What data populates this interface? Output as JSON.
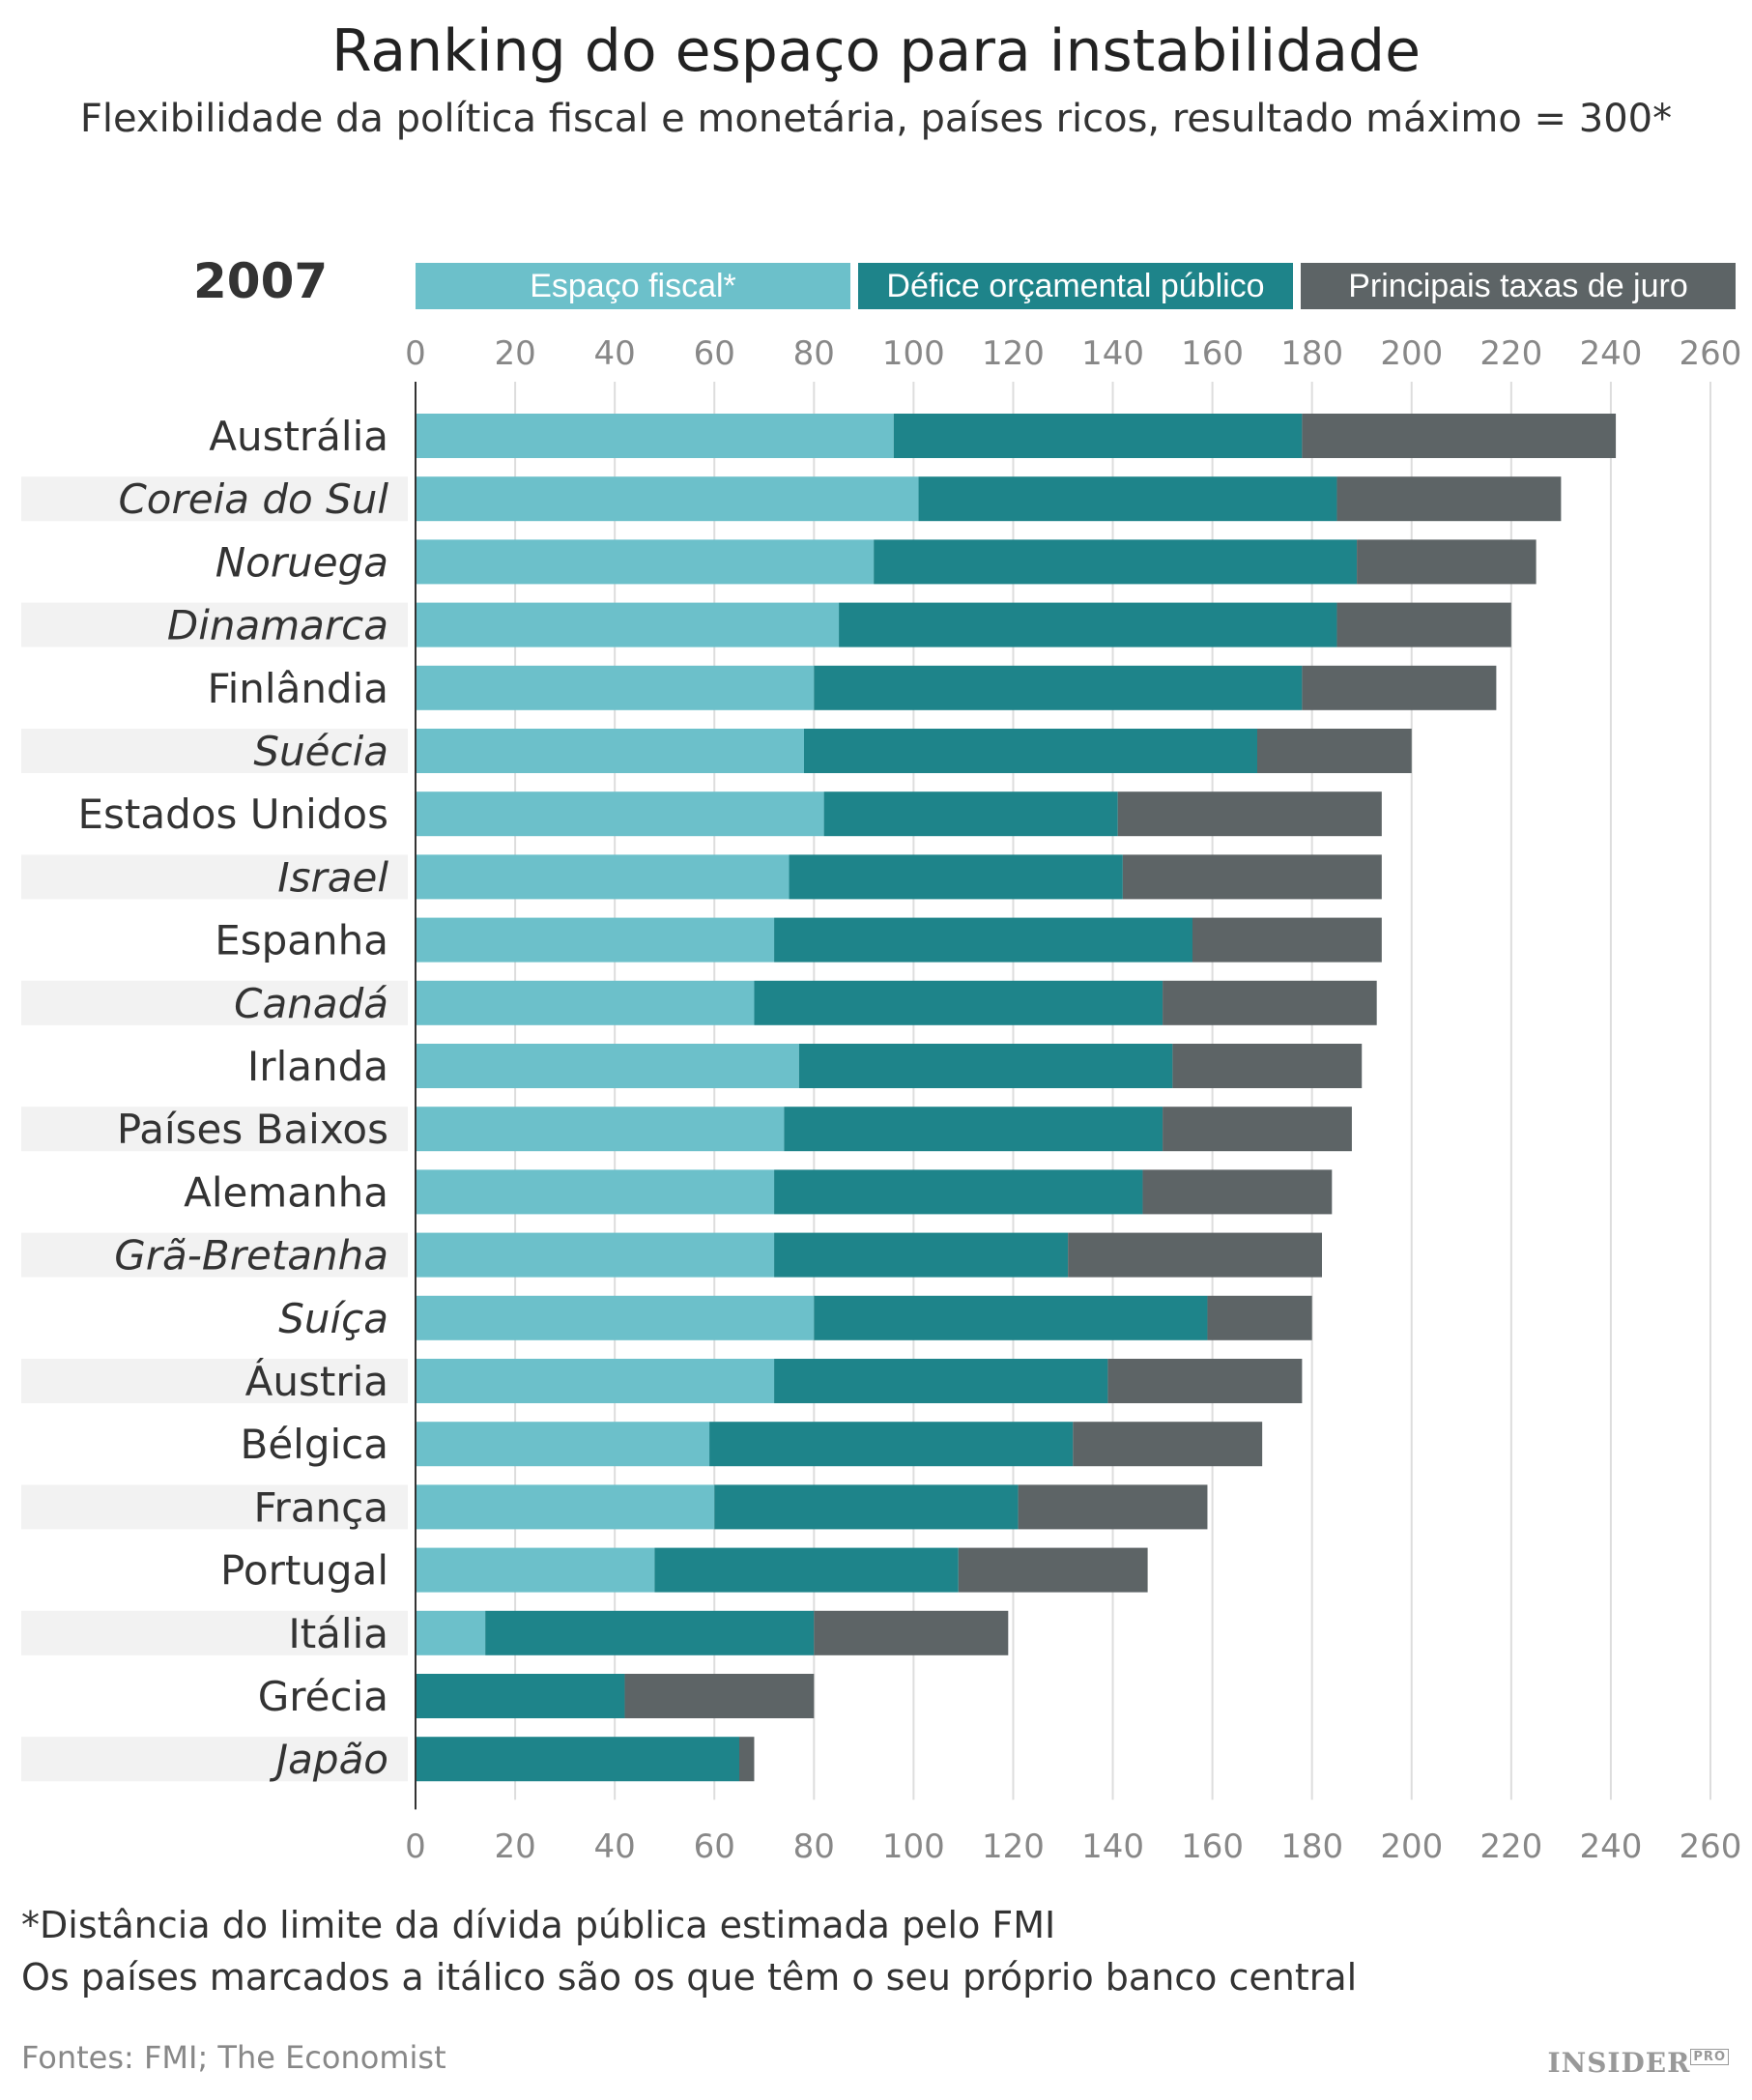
{
  "title": "Ranking do espaço para instabilidade",
  "subtitle": "Flexibilidade da política fiscal e monetária, países ricos, resultado máximo = 300*",
  "year": "2007",
  "footnote1": "*Distância do limite da dívida pública estimada pelo FMI",
  "footnote2": "Os países marcados a itálico são os que têm o seu próprio banco central",
  "sources": "Fontes: FMI; The Economist",
  "logo": {
    "main": "INSIDER",
    "sup": "PRO"
  },
  "colors": {
    "fiscal": "#6cc0ca",
    "deficit": "#1e848a",
    "juro": "#5d6466",
    "stripe": "#f2f2f2",
    "grid": "#dddddd"
  },
  "chart_data": {
    "type": "bar",
    "orientation": "horizontal",
    "stacked": true,
    "xlim": [
      0,
      260
    ],
    "xticks": [
      0,
      20,
      40,
      60,
      80,
      100,
      120,
      140,
      160,
      180,
      200,
      220,
      240,
      260
    ],
    "legend_position": "top",
    "categories": [
      "Austrália",
      "Coreia do Sul",
      "Noruega",
      "Dinamarca",
      "Finlândia",
      "Suécia",
      "Estados Unidos",
      "Israel",
      "Espanha",
      "Canadá",
      "Irlanda",
      "Países Baixos",
      "Alemanha",
      "Grã-Bretanha",
      "Suíça",
      "Áustria",
      "Bélgica",
      "França",
      "Portugal",
      "Itália",
      "Grécia",
      "Japão"
    ],
    "italic": [
      false,
      true,
      true,
      true,
      false,
      true,
      false,
      true,
      false,
      true,
      false,
      false,
      false,
      true,
      true,
      false,
      false,
      false,
      false,
      false,
      false,
      true
    ],
    "series": [
      {
        "name": "Espaço fiscal*",
        "values": [
          96,
          101,
          92,
          85,
          80,
          78,
          82,
          75,
          72,
          68,
          77,
          74,
          72,
          72,
          80,
          72,
          59,
          60,
          48,
          14,
          0,
          0
        ]
      },
      {
        "name": "Défice orçamental público",
        "values": [
          82,
          84,
          97,
          100,
          98,
          91,
          59,
          67,
          84,
          82,
          75,
          76,
          74,
          59,
          79,
          67,
          73,
          61,
          61,
          66,
          42,
          65
        ]
      },
      {
        "name": "Principais taxas de juro",
        "values": [
          63,
          45,
          36,
          35,
          39,
          31,
          53,
          52,
          38,
          43,
          38,
          38,
          38,
          51,
          21,
          39,
          38,
          38,
          38,
          39,
          38,
          3
        ]
      }
    ]
  }
}
